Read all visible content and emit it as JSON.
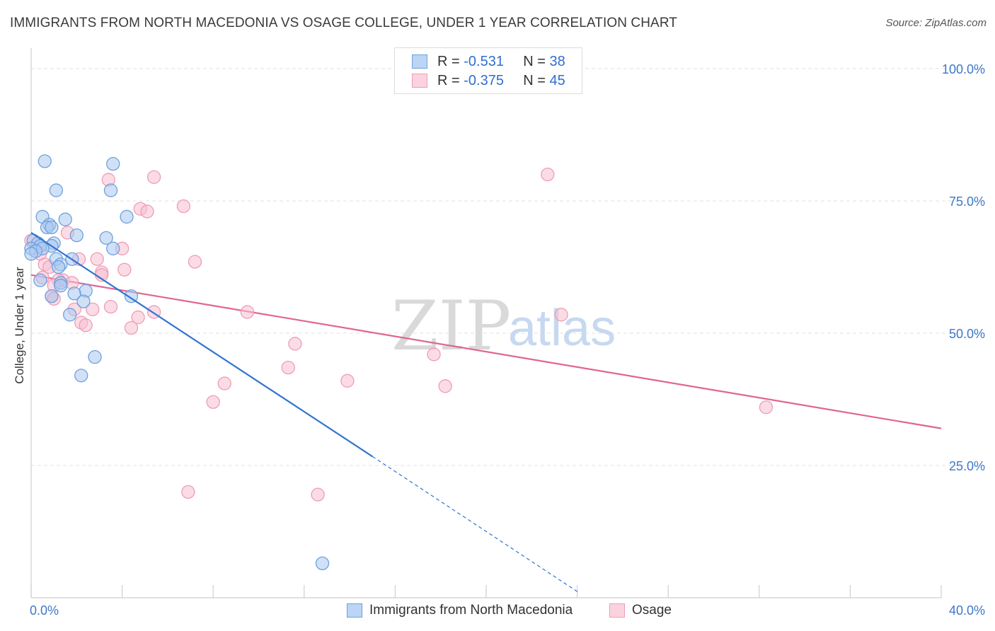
{
  "header": {
    "title": "IMMIGRANTS FROM NORTH MACEDONIA VS OSAGE COLLEGE, UNDER 1 YEAR CORRELATION CHART",
    "source": "Source: ZipAtlas.com"
  },
  "watermark": {
    "zip": "ZIP",
    "atlas": "atlas"
  },
  "legend": {
    "rows": [
      {
        "r_label": "R =",
        "r_value": "-0.531",
        "n_label": "N =",
        "n_value": "38"
      },
      {
        "r_label": "R =",
        "r_value": "-0.375",
        "n_label": "N =",
        "n_value": "45"
      }
    ]
  },
  "bottom_legend": {
    "items": [
      {
        "label": "Immigrants from North Macedonia"
      },
      {
        "label": "Osage"
      }
    ]
  },
  "colors": {
    "blue_fill": "#a9c8f0",
    "blue_stroke": "#6fa0dd",
    "blue_line": "#2f74d0",
    "pink_fill": "#f7bfd0",
    "pink_stroke": "#ee9cb8",
    "pink_line": "#e0658f",
    "axis_text": "#3d78c8",
    "grid": "#e2e2e2"
  },
  "chart_data": {
    "type": "scatter",
    "title": "IMMIGRANTS FROM NORTH MACEDONIA VS OSAGE COLLEGE, UNDER 1 YEAR CORRELATION CHART",
    "xlabel": "",
    "ylabel": "College, Under 1 year",
    "xlim": [
      0,
      40
    ],
    "ylim": [
      0,
      100
    ],
    "x_tick_labels": [
      "0.0%",
      "40.0%"
    ],
    "y_tick_labels": [
      "100.0%",
      "75.0%",
      "50.0%",
      "25.0%"
    ],
    "y_ticks": [
      100,
      75,
      50,
      25
    ],
    "grid": true,
    "legend_position": "top-center",
    "series": [
      {
        "name": "Immigrants from North Macedonia",
        "color": "#a9c8f0",
        "R": -0.531,
        "N": 38,
        "trend": {
          "x0": 0.0,
          "y0": 69.0,
          "x1": 15.0,
          "y1": 26.7,
          "dash_to_x": 24.1,
          "dash_to_y": 0.9
        },
        "points": [
          [
            0.6,
            82.5
          ],
          [
            3.6,
            82.0
          ],
          [
            1.1,
            77.0
          ],
          [
            3.5,
            77.0
          ],
          [
            0.5,
            72.0
          ],
          [
            1.5,
            71.5
          ],
          [
            4.2,
            72.0
          ],
          [
            0.8,
            70.5
          ],
          [
            0.7,
            70.0
          ],
          [
            0.9,
            70.0
          ],
          [
            2.0,
            68.5
          ],
          [
            3.3,
            68.0
          ],
          [
            0.1,
            67.5
          ],
          [
            0.3,
            67.0
          ],
          [
            1.0,
            67.0
          ],
          [
            0.9,
            66.5
          ],
          [
            0.4,
            66.5
          ],
          [
            0.0,
            66.0
          ],
          [
            0.5,
            66.0
          ],
          [
            3.6,
            66.0
          ],
          [
            0.2,
            65.5
          ],
          [
            0.0,
            65.0
          ],
          [
            1.1,
            64.0
          ],
          [
            1.8,
            64.0
          ],
          [
            1.3,
            63.0
          ],
          [
            1.2,
            62.5
          ],
          [
            0.4,
            60.0
          ],
          [
            1.3,
            59.5
          ],
          [
            1.3,
            59.0
          ],
          [
            2.4,
            58.0
          ],
          [
            0.9,
            57.0
          ],
          [
            1.9,
            57.5
          ],
          [
            4.4,
            57.0
          ],
          [
            2.3,
            56.0
          ],
          [
            1.7,
            53.5
          ],
          [
            2.8,
            45.5
          ],
          [
            2.2,
            42.0
          ],
          [
            12.8,
            6.5
          ]
        ]
      },
      {
        "name": "Osage",
        "color": "#f7bfd0",
        "R": -0.375,
        "N": 45,
        "trend": {
          "x0": 0.0,
          "y0": 61.0,
          "x1": 40.0,
          "y1": 32.0
        },
        "points": [
          [
            22.7,
            80.0
          ],
          [
            5.4,
            79.5
          ],
          [
            3.4,
            79.0
          ],
          [
            6.7,
            74.0
          ],
          [
            4.8,
            73.5
          ],
          [
            5.1,
            73.0
          ],
          [
            1.6,
            69.0
          ],
          [
            0.0,
            67.5
          ],
          [
            4.0,
            66.0
          ],
          [
            0.4,
            65.0
          ],
          [
            2.1,
            64.0
          ],
          [
            2.9,
            64.0
          ],
          [
            7.2,
            63.5
          ],
          [
            0.6,
            63.0
          ],
          [
            0.8,
            62.5
          ],
          [
            4.1,
            62.0
          ],
          [
            3.1,
            61.5
          ],
          [
            3.1,
            61.0
          ],
          [
            0.5,
            60.5
          ],
          [
            1.4,
            60.0
          ],
          [
            1.2,
            60.0
          ],
          [
            1.8,
            59.5
          ],
          [
            1.0,
            59.0
          ],
          [
            0.9,
            57.0
          ],
          [
            1.0,
            56.5
          ],
          [
            3.5,
            55.0
          ],
          [
            1.9,
            54.5
          ],
          [
            2.7,
            54.5
          ],
          [
            5.4,
            54.0
          ],
          [
            9.5,
            54.0
          ],
          [
            23.3,
            53.5
          ],
          [
            4.7,
            53.0
          ],
          [
            2.2,
            52.0
          ],
          [
            2.4,
            51.5
          ],
          [
            4.4,
            51.0
          ],
          [
            11.6,
            48.0
          ],
          [
            17.7,
            46.0
          ],
          [
            11.3,
            43.5
          ],
          [
            13.9,
            41.0
          ],
          [
            8.5,
            40.5
          ],
          [
            18.2,
            40.0
          ],
          [
            8.0,
            37.0
          ],
          [
            32.3,
            36.0
          ],
          [
            6.9,
            20.0
          ],
          [
            12.6,
            19.5
          ]
        ]
      }
    ]
  }
}
